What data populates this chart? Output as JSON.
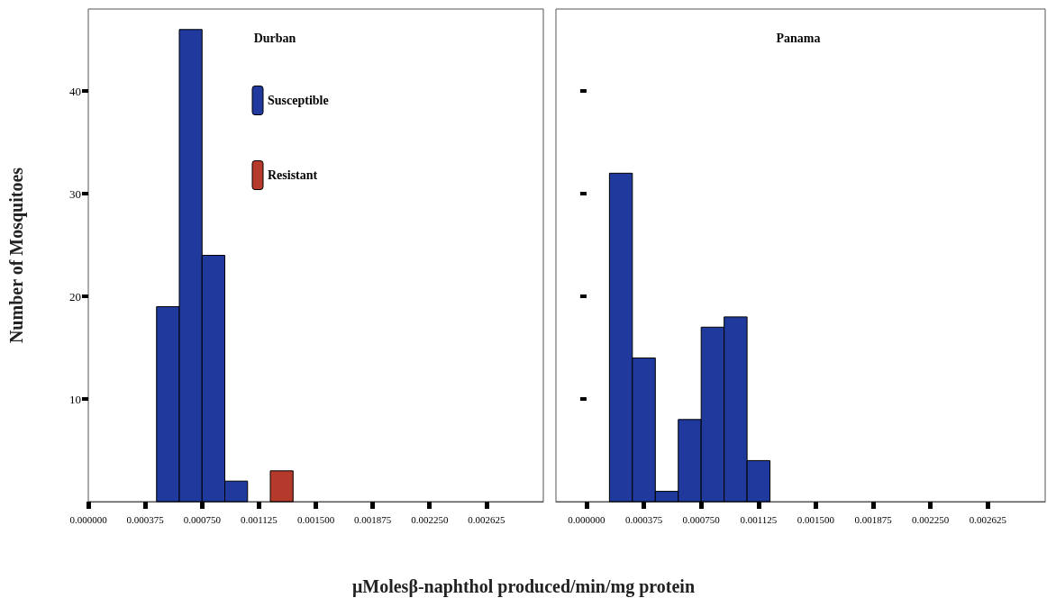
{
  "chart_data": [
    {
      "type": "histogram",
      "title": "Durban",
      "ylabel": "Number of Mosquitoes",
      "xlabel": "μMolesβ-naphthol produced/min/mg protein",
      "bins": [
        0.00045,
        0.0006,
        0.00075,
        0.0009,
        0.00105,
        0.0012,
        0.00135
      ],
      "series": [
        {
          "name": "Susceptible",
          "color": "#1f3a9c",
          "values": [
            19,
            46,
            24,
            2,
            null,
            null
          ]
        },
        {
          "name": "Resistant",
          "color": "#b53a2c",
          "values": [
            null,
            null,
            null,
            null,
            null,
            3
          ]
        }
      ],
      "xlim": [
        0,
        0.003
      ],
      "xticks": [
        {
          "value": 0,
          "label": "0.000000"
        },
        {
          "value": 0.000375,
          "label": "0.000375"
        },
        {
          "value": 0.00075,
          "label": "0.000750"
        },
        {
          "value": 0.001125,
          "label": "0.001125"
        },
        {
          "value": 0.0015,
          "label": "0.001500"
        },
        {
          "value": 0.001875,
          "label": "0.001875"
        },
        {
          "value": 0.00225,
          "label": "0.002250"
        },
        {
          "value": 0.002625,
          "label": "0.002625"
        }
      ],
      "ylim": [
        0,
        48
      ],
      "yticks": [
        10,
        20,
        30,
        40
      ],
      "grid": false,
      "legend": "top"
    },
    {
      "type": "histogram",
      "title": "Panama",
      "bins": [
        0.00015,
        0.0003,
        0.00045,
        0.0006,
        0.00075,
        0.0009,
        0.00105,
        0.0012
      ],
      "series": [
        {
          "color": "#1f3a9c",
          "values": [
            32,
            14,
            1,
            8,
            17,
            18,
            4
          ]
        }
      ],
      "xlim": [
        -0.0002,
        0.003
      ],
      "xticks": [
        {
          "value": 0,
          "label": "0.000000"
        },
        {
          "value": 0.000375,
          "label": "0.000375"
        },
        {
          "value": 0.00075,
          "label": "0.000750"
        },
        {
          "value": 0.001125,
          "label": "0.001125"
        },
        {
          "value": 0.0015,
          "label": "0.001500"
        },
        {
          "value": 0.001875,
          "label": "0.001875"
        },
        {
          "value": 0.00225,
          "label": "0.002250"
        },
        {
          "value": 0.002625,
          "label": "0.002625"
        }
      ],
      "ylim": [
        0,
        48
      ],
      "yticks": [
        {
          "value": 10,
          "label": null
        },
        {
          "value": 20,
          "label": null
        },
        {
          "value": 30,
          "label": null
        },
        {
          "value": 40,
          "label": null
        }
      ],
      "grid": false,
      "legend": false,
      "tick_labels": "x"
    }
  ]
}
